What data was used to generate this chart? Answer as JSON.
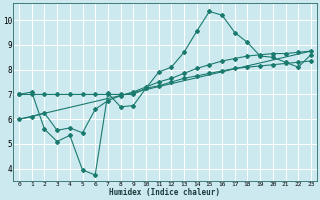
{
  "bg_color": "#cce9f0",
  "grid_color": "#ffffff",
  "line_color": "#1a7a6e",
  "line_width": 0.8,
  "marker": "D",
  "marker_size": 2.0,
  "xlabel": "Humidex (Indice chaleur)",
  "xlim": [
    -0.5,
    23.5
  ],
  "ylim": [
    3.5,
    10.7
  ],
  "yticks": [
    4,
    5,
    6,
    7,
    8,
    9,
    10
  ],
  "xticks": [
    0,
    1,
    2,
    3,
    4,
    5,
    6,
    7,
    8,
    9,
    10,
    11,
    12,
    13,
    14,
    15,
    16,
    17,
    18,
    19,
    20,
    21,
    22,
    23
  ],
  "line1_x": [
    0,
    1,
    2,
    3,
    4,
    5,
    6,
    7,
    8,
    9,
    10,
    11,
    12,
    13,
    14,
    15,
    16,
    17,
    18,
    19,
    20,
    21,
    22,
    23
  ],
  "line1_y": [
    7.0,
    7.1,
    5.6,
    5.1,
    5.35,
    3.95,
    3.75,
    7.05,
    6.5,
    6.55,
    7.25,
    7.9,
    8.1,
    8.7,
    9.55,
    10.35,
    10.2,
    9.5,
    9.1,
    8.55,
    8.5,
    8.3,
    8.1,
    8.6
  ],
  "line2_x": [
    0,
    1,
    2,
    3,
    4,
    5,
    6,
    7,
    8,
    9,
    10,
    11,
    12,
    13,
    14,
    15,
    16,
    17,
    18,
    19,
    20,
    21,
    22,
    23
  ],
  "line2_y": [
    7.0,
    7.0,
    7.0,
    7.0,
    7.0,
    7.0,
    7.0,
    7.0,
    7.0,
    7.0,
    7.25,
    7.35,
    7.5,
    7.65,
    7.75,
    7.85,
    7.95,
    8.05,
    8.1,
    8.15,
    8.2,
    8.25,
    8.3,
    8.35
  ],
  "line3_x": [
    0,
    23
  ],
  "line3_y": [
    6.0,
    8.75
  ],
  "line4_x": [
    0,
    1,
    2,
    3,
    4,
    5,
    6,
    7,
    8,
    9,
    10,
    11,
    12,
    13,
    14,
    15,
    16,
    17,
    18,
    19,
    20,
    21,
    22,
    23
  ],
  "line4_y": [
    6.0,
    6.1,
    6.25,
    5.55,
    5.65,
    5.45,
    6.4,
    6.75,
    6.95,
    7.1,
    7.3,
    7.5,
    7.65,
    7.85,
    8.05,
    8.2,
    8.35,
    8.45,
    8.55,
    8.6,
    8.65,
    8.65,
    8.7,
    8.75
  ]
}
